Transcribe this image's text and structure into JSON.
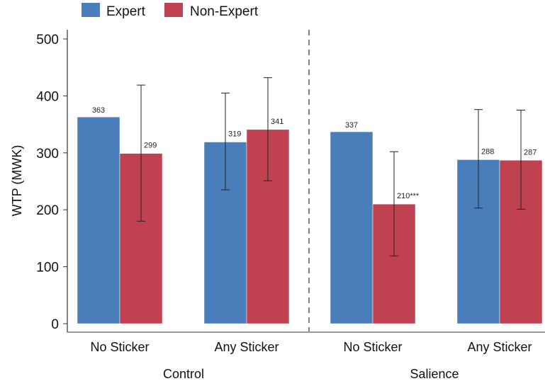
{
  "chart_data": {
    "type": "bar",
    "ylabel": "WTP (MWK)",
    "ylim": [
      0,
      500
    ],
    "yticks": [
      0,
      100,
      200,
      300,
      400,
      500
    ],
    "grid": false,
    "legend_position": "top-left",
    "groups": [
      {
        "name": "Control",
        "categories": [
          "No Sticker",
          "Any Sticker"
        ]
      },
      {
        "name": "Salience",
        "categories": [
          "No Sticker",
          "Any Sticker"
        ]
      }
    ],
    "series": [
      {
        "name": "Expert",
        "color": "#4a7ebb",
        "values": [
          363,
          319,
          337,
          288
        ],
        "labels": [
          "363",
          "319",
          "337",
          "288"
        ],
        "error_low": [
          null,
          235,
          null,
          203
        ],
        "error_high": [
          null,
          405,
          null,
          376
        ]
      },
      {
        "name": "Non-Expert",
        "color": "#c0414f",
        "values": [
          299,
          341,
          210,
          287
        ],
        "labels": [
          "299",
          "341",
          "210***",
          "287"
        ],
        "error_low": [
          180,
          251,
          119,
          201
        ],
        "error_high": [
          419,
          432,
          302,
          375
        ]
      }
    ]
  }
}
